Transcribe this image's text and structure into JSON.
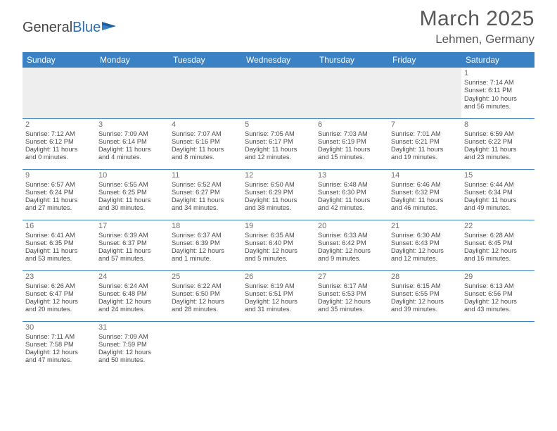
{
  "logo": {
    "part1": "General",
    "part2": "Blue"
  },
  "title": "March 2025",
  "location": "Lehmen, Germany",
  "colors": {
    "header_bg": "#3b82c4",
    "header_text": "#ffffff",
    "border": "#3b82c4",
    "blank_bg": "#eeeeee",
    "text": "#4a4a4a",
    "daynum": "#707070",
    "logo_blue": "#2e6fb0"
  },
  "weekdays": [
    "Sunday",
    "Monday",
    "Tuesday",
    "Wednesday",
    "Thursday",
    "Friday",
    "Saturday"
  ],
  "weeks": [
    [
      null,
      null,
      null,
      null,
      null,
      null,
      {
        "d": "1",
        "sr": "Sunrise: 7:14 AM",
        "ss": "Sunset: 6:11 PM",
        "dl1": "Daylight: 10 hours",
        "dl2": "and 56 minutes."
      }
    ],
    [
      {
        "d": "2",
        "sr": "Sunrise: 7:12 AM",
        "ss": "Sunset: 6:12 PM",
        "dl1": "Daylight: 11 hours",
        "dl2": "and 0 minutes."
      },
      {
        "d": "3",
        "sr": "Sunrise: 7:09 AM",
        "ss": "Sunset: 6:14 PM",
        "dl1": "Daylight: 11 hours",
        "dl2": "and 4 minutes."
      },
      {
        "d": "4",
        "sr": "Sunrise: 7:07 AM",
        "ss": "Sunset: 6:16 PM",
        "dl1": "Daylight: 11 hours",
        "dl2": "and 8 minutes."
      },
      {
        "d": "5",
        "sr": "Sunrise: 7:05 AM",
        "ss": "Sunset: 6:17 PM",
        "dl1": "Daylight: 11 hours",
        "dl2": "and 12 minutes."
      },
      {
        "d": "6",
        "sr": "Sunrise: 7:03 AM",
        "ss": "Sunset: 6:19 PM",
        "dl1": "Daylight: 11 hours",
        "dl2": "and 15 minutes."
      },
      {
        "d": "7",
        "sr": "Sunrise: 7:01 AM",
        "ss": "Sunset: 6:21 PM",
        "dl1": "Daylight: 11 hours",
        "dl2": "and 19 minutes."
      },
      {
        "d": "8",
        "sr": "Sunrise: 6:59 AM",
        "ss": "Sunset: 6:22 PM",
        "dl1": "Daylight: 11 hours",
        "dl2": "and 23 minutes."
      }
    ],
    [
      {
        "d": "9",
        "sr": "Sunrise: 6:57 AM",
        "ss": "Sunset: 6:24 PM",
        "dl1": "Daylight: 11 hours",
        "dl2": "and 27 minutes."
      },
      {
        "d": "10",
        "sr": "Sunrise: 6:55 AM",
        "ss": "Sunset: 6:25 PM",
        "dl1": "Daylight: 11 hours",
        "dl2": "and 30 minutes."
      },
      {
        "d": "11",
        "sr": "Sunrise: 6:52 AM",
        "ss": "Sunset: 6:27 PM",
        "dl1": "Daylight: 11 hours",
        "dl2": "and 34 minutes."
      },
      {
        "d": "12",
        "sr": "Sunrise: 6:50 AM",
        "ss": "Sunset: 6:29 PM",
        "dl1": "Daylight: 11 hours",
        "dl2": "and 38 minutes."
      },
      {
        "d": "13",
        "sr": "Sunrise: 6:48 AM",
        "ss": "Sunset: 6:30 PM",
        "dl1": "Daylight: 11 hours",
        "dl2": "and 42 minutes."
      },
      {
        "d": "14",
        "sr": "Sunrise: 6:46 AM",
        "ss": "Sunset: 6:32 PM",
        "dl1": "Daylight: 11 hours",
        "dl2": "and 46 minutes."
      },
      {
        "d": "15",
        "sr": "Sunrise: 6:44 AM",
        "ss": "Sunset: 6:34 PM",
        "dl1": "Daylight: 11 hours",
        "dl2": "and 49 minutes."
      }
    ],
    [
      {
        "d": "16",
        "sr": "Sunrise: 6:41 AM",
        "ss": "Sunset: 6:35 PM",
        "dl1": "Daylight: 11 hours",
        "dl2": "and 53 minutes."
      },
      {
        "d": "17",
        "sr": "Sunrise: 6:39 AM",
        "ss": "Sunset: 6:37 PM",
        "dl1": "Daylight: 11 hours",
        "dl2": "and 57 minutes."
      },
      {
        "d": "18",
        "sr": "Sunrise: 6:37 AM",
        "ss": "Sunset: 6:39 PM",
        "dl1": "Daylight: 12 hours",
        "dl2": "and 1 minute."
      },
      {
        "d": "19",
        "sr": "Sunrise: 6:35 AM",
        "ss": "Sunset: 6:40 PM",
        "dl1": "Daylight: 12 hours",
        "dl2": "and 5 minutes."
      },
      {
        "d": "20",
        "sr": "Sunrise: 6:33 AM",
        "ss": "Sunset: 6:42 PM",
        "dl1": "Daylight: 12 hours",
        "dl2": "and 9 minutes."
      },
      {
        "d": "21",
        "sr": "Sunrise: 6:30 AM",
        "ss": "Sunset: 6:43 PM",
        "dl1": "Daylight: 12 hours",
        "dl2": "and 12 minutes."
      },
      {
        "d": "22",
        "sr": "Sunrise: 6:28 AM",
        "ss": "Sunset: 6:45 PM",
        "dl1": "Daylight: 12 hours",
        "dl2": "and 16 minutes."
      }
    ],
    [
      {
        "d": "23",
        "sr": "Sunrise: 6:26 AM",
        "ss": "Sunset: 6:47 PM",
        "dl1": "Daylight: 12 hours",
        "dl2": "and 20 minutes."
      },
      {
        "d": "24",
        "sr": "Sunrise: 6:24 AM",
        "ss": "Sunset: 6:48 PM",
        "dl1": "Daylight: 12 hours",
        "dl2": "and 24 minutes."
      },
      {
        "d": "25",
        "sr": "Sunrise: 6:22 AM",
        "ss": "Sunset: 6:50 PM",
        "dl1": "Daylight: 12 hours",
        "dl2": "and 28 minutes."
      },
      {
        "d": "26",
        "sr": "Sunrise: 6:19 AM",
        "ss": "Sunset: 6:51 PM",
        "dl1": "Daylight: 12 hours",
        "dl2": "and 31 minutes."
      },
      {
        "d": "27",
        "sr": "Sunrise: 6:17 AM",
        "ss": "Sunset: 6:53 PM",
        "dl1": "Daylight: 12 hours",
        "dl2": "and 35 minutes."
      },
      {
        "d": "28",
        "sr": "Sunrise: 6:15 AM",
        "ss": "Sunset: 6:55 PM",
        "dl1": "Daylight: 12 hours",
        "dl2": "and 39 minutes."
      },
      {
        "d": "29",
        "sr": "Sunrise: 6:13 AM",
        "ss": "Sunset: 6:56 PM",
        "dl1": "Daylight: 12 hours",
        "dl2": "and 43 minutes."
      }
    ],
    [
      {
        "d": "30",
        "sr": "Sunrise: 7:11 AM",
        "ss": "Sunset: 7:58 PM",
        "dl1": "Daylight: 12 hours",
        "dl2": "and 47 minutes."
      },
      {
        "d": "31",
        "sr": "Sunrise: 7:09 AM",
        "ss": "Sunset: 7:59 PM",
        "dl1": "Daylight: 12 hours",
        "dl2": "and 50 minutes."
      },
      null,
      null,
      null,
      null,
      null
    ]
  ]
}
